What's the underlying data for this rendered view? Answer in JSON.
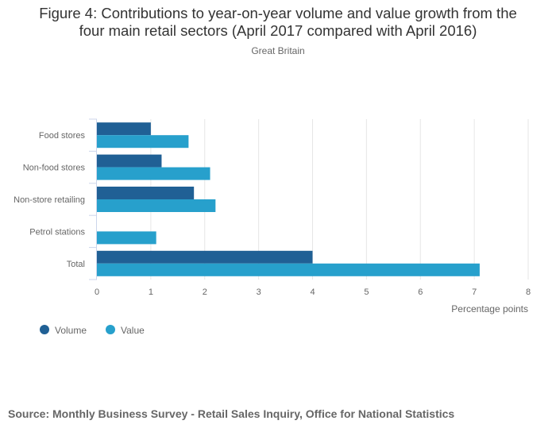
{
  "chart_data": {
    "type": "bar",
    "orientation": "horizontal",
    "title": "Figure 4: Contributions to year-on-year volume and value growth from the four main retail sectors (April 2017 compared with April 2016)",
    "title_lines": [
      "Figure 4: Contributions to year-on-year volume and value growth from the",
      "four main retail sectors (April 2017 compared with April 2016)"
    ],
    "subtitle": "Great Britain",
    "categories": [
      "Food stores",
      "Non-food stores",
      "Non-store retailing",
      "Petrol stations",
      "Total"
    ],
    "series": [
      {
        "name": "Volume",
        "color": "#206095",
        "values": [
          1.0,
          1.2,
          1.8,
          0.0,
          4.0
        ]
      },
      {
        "name": "Value",
        "color": "#27a0cc",
        "values": [
          1.7,
          2.1,
          2.2,
          1.1,
          7.1
        ]
      }
    ],
    "xlabel": "Percentage points",
    "ylabel": "",
    "xlim": [
      0,
      8
    ],
    "xticks": [
      "0",
      "1",
      "2",
      "3",
      "4",
      "5",
      "6",
      "7",
      "8"
    ],
    "grid": true,
    "legend": "bottom-left"
  },
  "source": "Source: Monthly Business Survey - Retail Sales Inquiry, Office for National Statistics"
}
